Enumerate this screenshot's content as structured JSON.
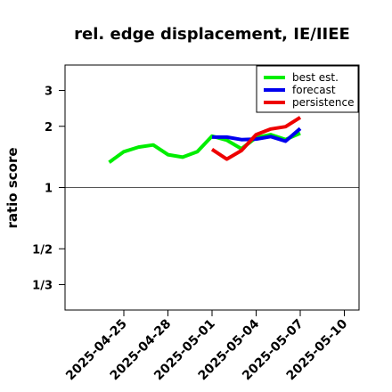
{
  "chart_data": {
    "type": "line",
    "title": "rel. edge displacement, IE/IIEE",
    "xlabel": "",
    "ylabel": "ratio score",
    "y_scale": "log",
    "y_ticks": [
      {
        "value": 0.3333,
        "label": "1/3"
      },
      {
        "value": 0.5,
        "label": "1/2"
      },
      {
        "value": 1,
        "label": "1"
      },
      {
        "value": 2,
        "label": "2"
      },
      {
        "value": 3,
        "label": "3"
      }
    ],
    "ylim": [
      0.25,
      4.0
    ],
    "xlim": [
      "2025-04-21",
      "2025-05-11"
    ],
    "x_ticks": [
      {
        "date": "2025-04-25",
        "label": "2025-04-25",
        "color": "#000000"
      },
      {
        "date": "2025-04-28",
        "label": "2025-04-28",
        "color": "#000000"
      },
      {
        "date": "2025-05-01",
        "label": "2025-05-01",
        "color": "#228B22"
      },
      {
        "date": "2025-05-04",
        "label": "2025-05-04",
        "color": "#000000"
      },
      {
        "date": "2025-05-07",
        "label": "2025-05-07",
        "color": "#000000"
      },
      {
        "date": "2025-05-10",
        "label": "2025-05-10",
        "color": "#000000"
      }
    ],
    "reference_line": 1,
    "legend_position": "top-right",
    "series": [
      {
        "name": "best est.",
        "color": "#00ee00",
        "points": [
          {
            "x": "2025-04-24",
            "y": 1.33
          },
          {
            "x": "2025-04-25",
            "y": 1.5
          },
          {
            "x": "2025-04-26",
            "y": 1.58
          },
          {
            "x": "2025-04-27",
            "y": 1.62
          },
          {
            "x": "2025-04-28",
            "y": 1.45
          },
          {
            "x": "2025-04-29",
            "y": 1.41
          },
          {
            "x": "2025-04-30",
            "y": 1.5
          },
          {
            "x": "2025-05-01",
            "y": 1.79
          },
          {
            "x": "2025-05-02",
            "y": 1.71
          },
          {
            "x": "2025-05-03",
            "y": 1.55
          },
          {
            "x": "2025-05-04",
            "y": 1.76
          },
          {
            "x": "2025-05-05",
            "y": 1.82
          },
          {
            "x": "2025-05-06",
            "y": 1.72
          },
          {
            "x": "2025-05-07",
            "y": 1.85
          }
        ]
      },
      {
        "name": "forecast",
        "color": "#0000ee",
        "points": [
          {
            "x": "2025-05-01",
            "y": 1.77
          },
          {
            "x": "2025-05-02",
            "y": 1.77
          },
          {
            "x": "2025-05-03",
            "y": 1.72
          },
          {
            "x": "2025-05-04",
            "y": 1.73
          },
          {
            "x": "2025-05-05",
            "y": 1.78
          },
          {
            "x": "2025-05-06",
            "y": 1.69
          },
          {
            "x": "2025-05-07",
            "y": 1.95
          }
        ]
      },
      {
        "name": "persistence",
        "color": "#ee0000",
        "points": [
          {
            "x": "2025-05-01",
            "y": 1.54
          },
          {
            "x": "2025-05-02",
            "y": 1.38
          },
          {
            "x": "2025-05-03",
            "y": 1.52
          },
          {
            "x": "2025-05-04",
            "y": 1.82
          },
          {
            "x": "2025-05-05",
            "y": 1.94
          },
          {
            "x": "2025-05-06",
            "y": 1.99
          },
          {
            "x": "2025-05-07",
            "y": 2.21
          }
        ]
      }
    ]
  }
}
